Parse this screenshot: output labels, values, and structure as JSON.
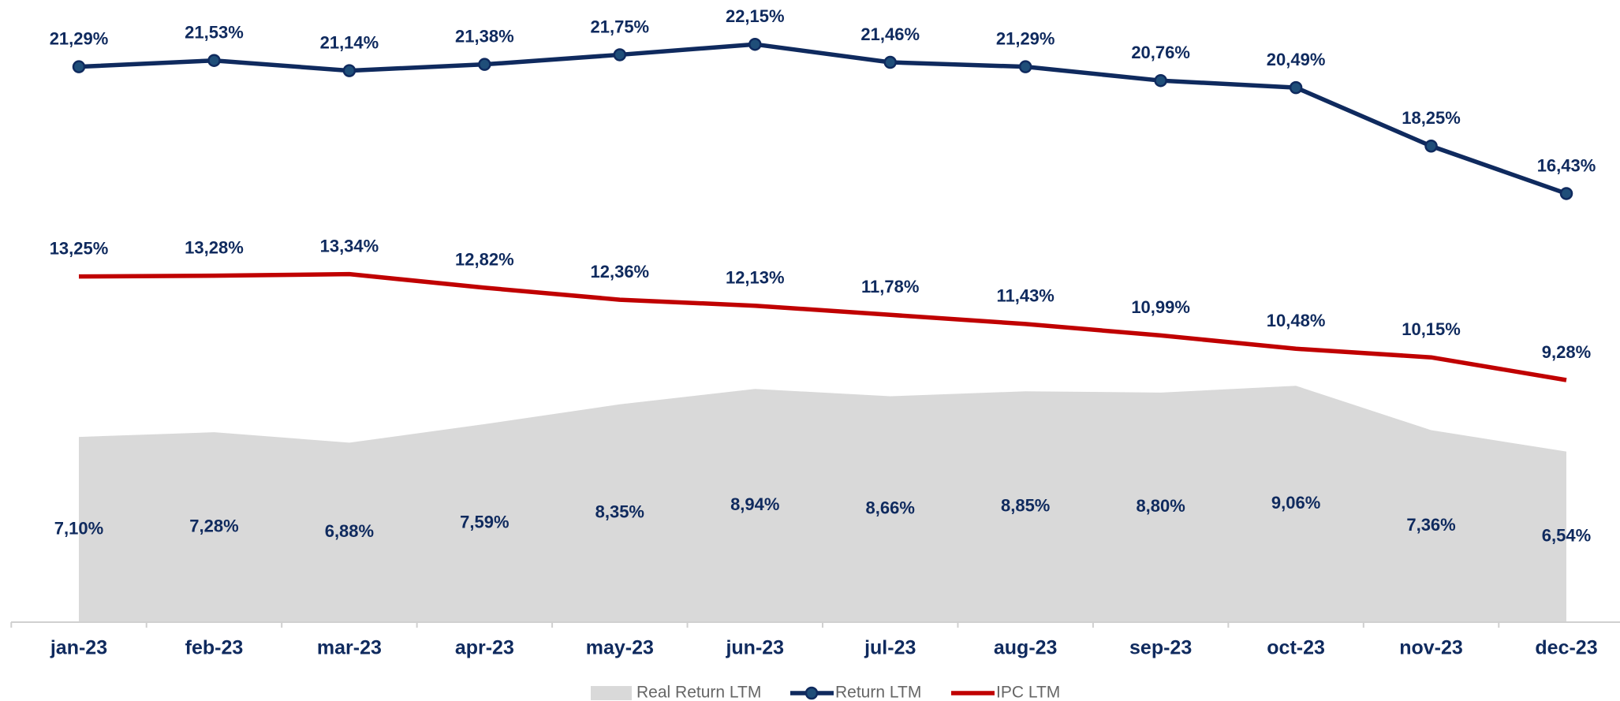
{
  "chart_data": {
    "type": "line",
    "categories": [
      "jan-23",
      "feb-23",
      "mar-23",
      "apr-23",
      "may-23",
      "jun-23",
      "jul-23",
      "aug-23",
      "sep-23",
      "oct-23",
      "nov-23",
      "dec-23"
    ],
    "series": [
      {
        "name": "Real Return LTM",
        "type": "area",
        "color": "#d9d9d9",
        "values": [
          7.1,
          7.28,
          6.88,
          7.59,
          8.35,
          8.94,
          8.66,
          8.85,
          8.8,
          9.06,
          7.36,
          6.54
        ],
        "value_labels": [
          "7,10%",
          "7,28%",
          "6,88%",
          "7,59%",
          "8,35%",
          "8,94%",
          "8,66%",
          "8,85%",
          "8,80%",
          "9,06%",
          "7,36%",
          "6,54%"
        ]
      },
      {
        "name": "Return LTM",
        "type": "line",
        "marker": true,
        "color": "#0f2a5e",
        "values": [
          21.29,
          21.53,
          21.14,
          21.38,
          21.75,
          22.15,
          21.46,
          21.29,
          20.76,
          20.49,
          18.25,
          16.43
        ],
        "value_labels": [
          "21,29%",
          "21,53%",
          "21,14%",
          "21,38%",
          "21,75%",
          "22,15%",
          "21,46%",
          "21,29%",
          "20,76%",
          "20,49%",
          "18,25%",
          "16,43%"
        ]
      },
      {
        "name": "IPC LTM",
        "type": "line",
        "marker": false,
        "color": "#c00000",
        "values": [
          13.25,
          13.28,
          13.34,
          12.82,
          12.36,
          12.13,
          11.78,
          11.43,
          10.99,
          10.48,
          10.15,
          9.28
        ],
        "value_labels": [
          "13,25%",
          "13,28%",
          "13,34%",
          "12,82%",
          "12,36%",
          "12,13%",
          "11,78%",
          "11,43%",
          "10,99%",
          "10,48%",
          "10,15%",
          "9,28%"
        ]
      }
    ],
    "ylim": [
      0,
      24
    ],
    "legend": "bottom"
  }
}
